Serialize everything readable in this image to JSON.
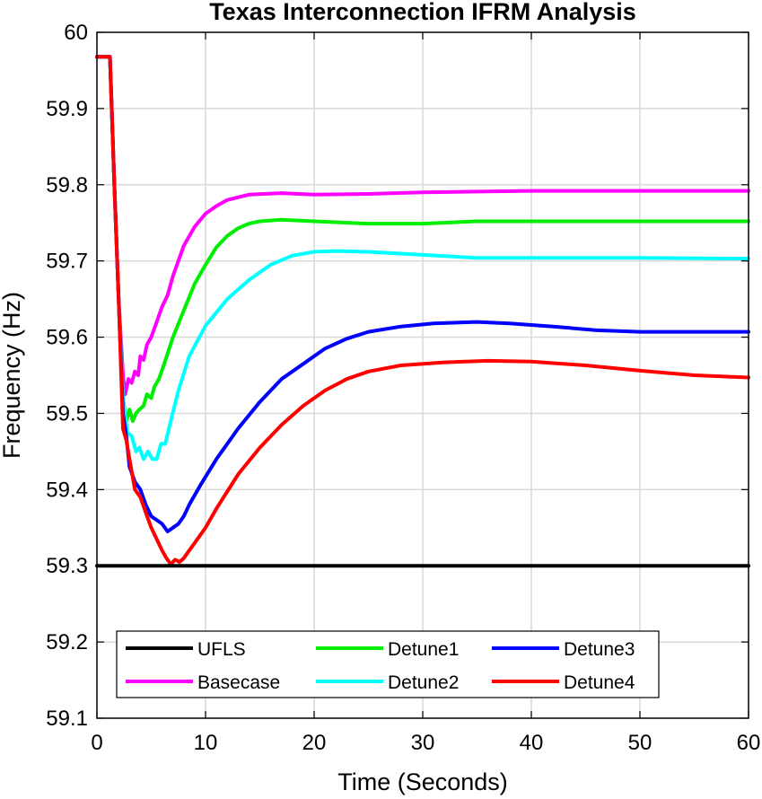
{
  "chart_data": {
    "type": "line",
    "title": "Texas Interconnection IFRM Analysis",
    "xlabel": "Time (Seconds)",
    "ylabel": "Frequency (Hz)",
    "xlim": [
      0,
      60
    ],
    "ylim": [
      59.1,
      60
    ],
    "xticks": [
      "0",
      "10",
      "20",
      "30",
      "40",
      "50",
      "60"
    ],
    "yticks": [
      "59.1",
      "59.2",
      "59.3",
      "59.4",
      "59.5",
      "59.6",
      "59.7",
      "59.8",
      "59.9",
      "60"
    ],
    "grid": true,
    "legend_position": "bottom",
    "series": [
      {
        "name": "UFLS",
        "color": "#000000",
        "points": [
          [
            0,
            59.3
          ],
          [
            60,
            59.3
          ]
        ]
      },
      {
        "name": "Basecase",
        "color": "#ff00ff",
        "points": [
          [
            0,
            59.968
          ],
          [
            1.2,
            59.968
          ],
          [
            1.6,
            59.8
          ],
          [
            2.0,
            59.65
          ],
          [
            2.4,
            59.55
          ],
          [
            2.6,
            59.525
          ],
          [
            2.9,
            59.545
          ],
          [
            3.2,
            59.54
          ],
          [
            3.5,
            59.555
          ],
          [
            3.8,
            59.55
          ],
          [
            4.0,
            59.575
          ],
          [
            4.3,
            59.57
          ],
          [
            4.6,
            59.59
          ],
          [
            5.0,
            59.6
          ],
          [
            5.5,
            59.62
          ],
          [
            6.0,
            59.64
          ],
          [
            6.5,
            59.655
          ],
          [
            7.0,
            59.68
          ],
          [
            8.0,
            59.72
          ],
          [
            9.0,
            59.745
          ],
          [
            10.0,
            59.762
          ],
          [
            11.0,
            59.772
          ],
          [
            12.0,
            59.78
          ],
          [
            14.0,
            59.787
          ],
          [
            17.0,
            59.789
          ],
          [
            20.0,
            59.787
          ],
          [
            25.0,
            59.788
          ],
          [
            30.0,
            59.79
          ],
          [
            35.0,
            59.791
          ],
          [
            40.0,
            59.792
          ],
          [
            50.0,
            59.792
          ],
          [
            60.0,
            59.792
          ]
        ]
      },
      {
        "name": "Detune1",
        "color": "#00ee00",
        "points": [
          [
            0,
            59.968
          ],
          [
            1.2,
            59.968
          ],
          [
            1.6,
            59.8
          ],
          [
            2.0,
            59.65
          ],
          [
            2.4,
            59.52
          ],
          [
            2.7,
            59.49
          ],
          [
            3.0,
            59.505
          ],
          [
            3.3,
            59.49
          ],
          [
            3.6,
            59.5
          ],
          [
            3.9,
            59.505
          ],
          [
            4.3,
            59.51
          ],
          [
            4.6,
            59.525
          ],
          [
            5.0,
            59.52
          ],
          [
            5.3,
            59.535
          ],
          [
            5.7,
            59.545
          ],
          [
            6.2,
            59.565
          ],
          [
            7.0,
            59.6
          ],
          [
            8.0,
            59.635
          ],
          [
            9.0,
            59.67
          ],
          [
            10.0,
            59.695
          ],
          [
            11.0,
            59.718
          ],
          [
            12.0,
            59.733
          ],
          [
            13.0,
            59.743
          ],
          [
            14.0,
            59.749
          ],
          [
            15.0,
            59.752
          ],
          [
            17.0,
            59.754
          ],
          [
            20.0,
            59.752
          ],
          [
            25.0,
            59.749
          ],
          [
            30.0,
            59.749
          ],
          [
            35.0,
            59.752
          ],
          [
            40.0,
            59.752
          ],
          [
            50.0,
            59.752
          ],
          [
            60.0,
            59.752
          ]
        ]
      },
      {
        "name": "Detune2",
        "color": "#00ffff",
        "points": [
          [
            0,
            59.968
          ],
          [
            1.2,
            59.968
          ],
          [
            1.6,
            59.8
          ],
          [
            2.0,
            59.65
          ],
          [
            2.4,
            59.52
          ],
          [
            2.8,
            59.475
          ],
          [
            3.2,
            59.47
          ],
          [
            3.6,
            59.45
          ],
          [
            3.9,
            59.455
          ],
          [
            4.3,
            59.44
          ],
          [
            4.7,
            59.45
          ],
          [
            5.1,
            59.44
          ],
          [
            5.5,
            59.44
          ],
          [
            5.9,
            59.46
          ],
          [
            6.3,
            59.46
          ],
          [
            6.8,
            59.49
          ],
          [
            7.5,
            59.53
          ],
          [
            8.5,
            59.575
          ],
          [
            10.0,
            59.615
          ],
          [
            12.0,
            59.65
          ],
          [
            14.0,
            59.675
          ],
          [
            16.0,
            59.695
          ],
          [
            18.0,
            59.707
          ],
          [
            20.0,
            59.712
          ],
          [
            22.0,
            59.713
          ],
          [
            25.0,
            59.712
          ],
          [
            30.0,
            59.708
          ],
          [
            35.0,
            59.704
          ],
          [
            40.0,
            59.704
          ],
          [
            50.0,
            59.704
          ],
          [
            60.0,
            59.703
          ]
        ]
      },
      {
        "name": "Detune3",
        "color": "#0000ff",
        "points": [
          [
            0,
            59.968
          ],
          [
            1.2,
            59.968
          ],
          [
            1.6,
            59.8
          ],
          [
            2.0,
            59.65
          ],
          [
            2.4,
            59.5
          ],
          [
            2.7,
            59.47
          ],
          [
            3.0,
            59.43
          ],
          [
            3.5,
            59.41
          ],
          [
            4.0,
            59.4
          ],
          [
            4.5,
            59.38
          ],
          [
            5.0,
            59.365
          ],
          [
            5.5,
            59.36
          ],
          [
            6.0,
            59.355
          ],
          [
            6.5,
            59.345
          ],
          [
            7.0,
            59.35
          ],
          [
            7.5,
            59.355
          ],
          [
            8.0,
            59.365
          ],
          [
            8.5,
            59.38
          ],
          [
            9.5,
            59.405
          ],
          [
            11.0,
            59.44
          ],
          [
            13.0,
            59.48
          ],
          [
            15.0,
            59.515
          ],
          [
            17.0,
            59.545
          ],
          [
            19.0,
            59.565
          ],
          [
            21.0,
            59.585
          ],
          [
            23.0,
            59.598
          ],
          [
            25.0,
            59.607
          ],
          [
            28.0,
            59.614
          ],
          [
            31.0,
            59.618
          ],
          [
            35.0,
            59.62
          ],
          [
            38.0,
            59.618
          ],
          [
            42.0,
            59.614
          ],
          [
            46.0,
            59.609
          ],
          [
            50.0,
            59.607
          ],
          [
            55.0,
            59.607
          ],
          [
            60.0,
            59.607
          ]
        ]
      },
      {
        "name": "Detune4",
        "color": "#ff0000",
        "points": [
          [
            0,
            59.968
          ],
          [
            1.2,
            59.968
          ],
          [
            1.6,
            59.8
          ],
          [
            2.0,
            59.65
          ],
          [
            2.4,
            59.48
          ],
          [
            2.7,
            59.465
          ],
          [
            3.0,
            59.44
          ],
          [
            3.5,
            59.4
          ],
          [
            4.0,
            59.39
          ],
          [
            4.5,
            59.37
          ],
          [
            5.0,
            59.35
          ],
          [
            5.5,
            59.335
          ],
          [
            6.0,
            59.32
          ],
          [
            6.4,
            59.31
          ],
          [
            6.8,
            59.302
          ],
          [
            7.2,
            59.308
          ],
          [
            7.6,
            59.305
          ],
          [
            8.0,
            59.31
          ],
          [
            8.5,
            59.32
          ],
          [
            9.0,
            59.33
          ],
          [
            10.0,
            59.35
          ],
          [
            11.0,
            59.375
          ],
          [
            13.0,
            59.42
          ],
          [
            15.0,
            59.455
          ],
          [
            17.0,
            59.485
          ],
          [
            19.0,
            59.51
          ],
          [
            21.0,
            59.53
          ],
          [
            23.0,
            59.545
          ],
          [
            25.0,
            59.555
          ],
          [
            28.0,
            59.563
          ],
          [
            32.0,
            59.567
          ],
          [
            36.0,
            59.569
          ],
          [
            40.0,
            59.568
          ],
          [
            45.0,
            59.563
          ],
          [
            50.0,
            59.556
          ],
          [
            55.0,
            59.55
          ],
          [
            60.0,
            59.547
          ]
        ]
      }
    ]
  }
}
